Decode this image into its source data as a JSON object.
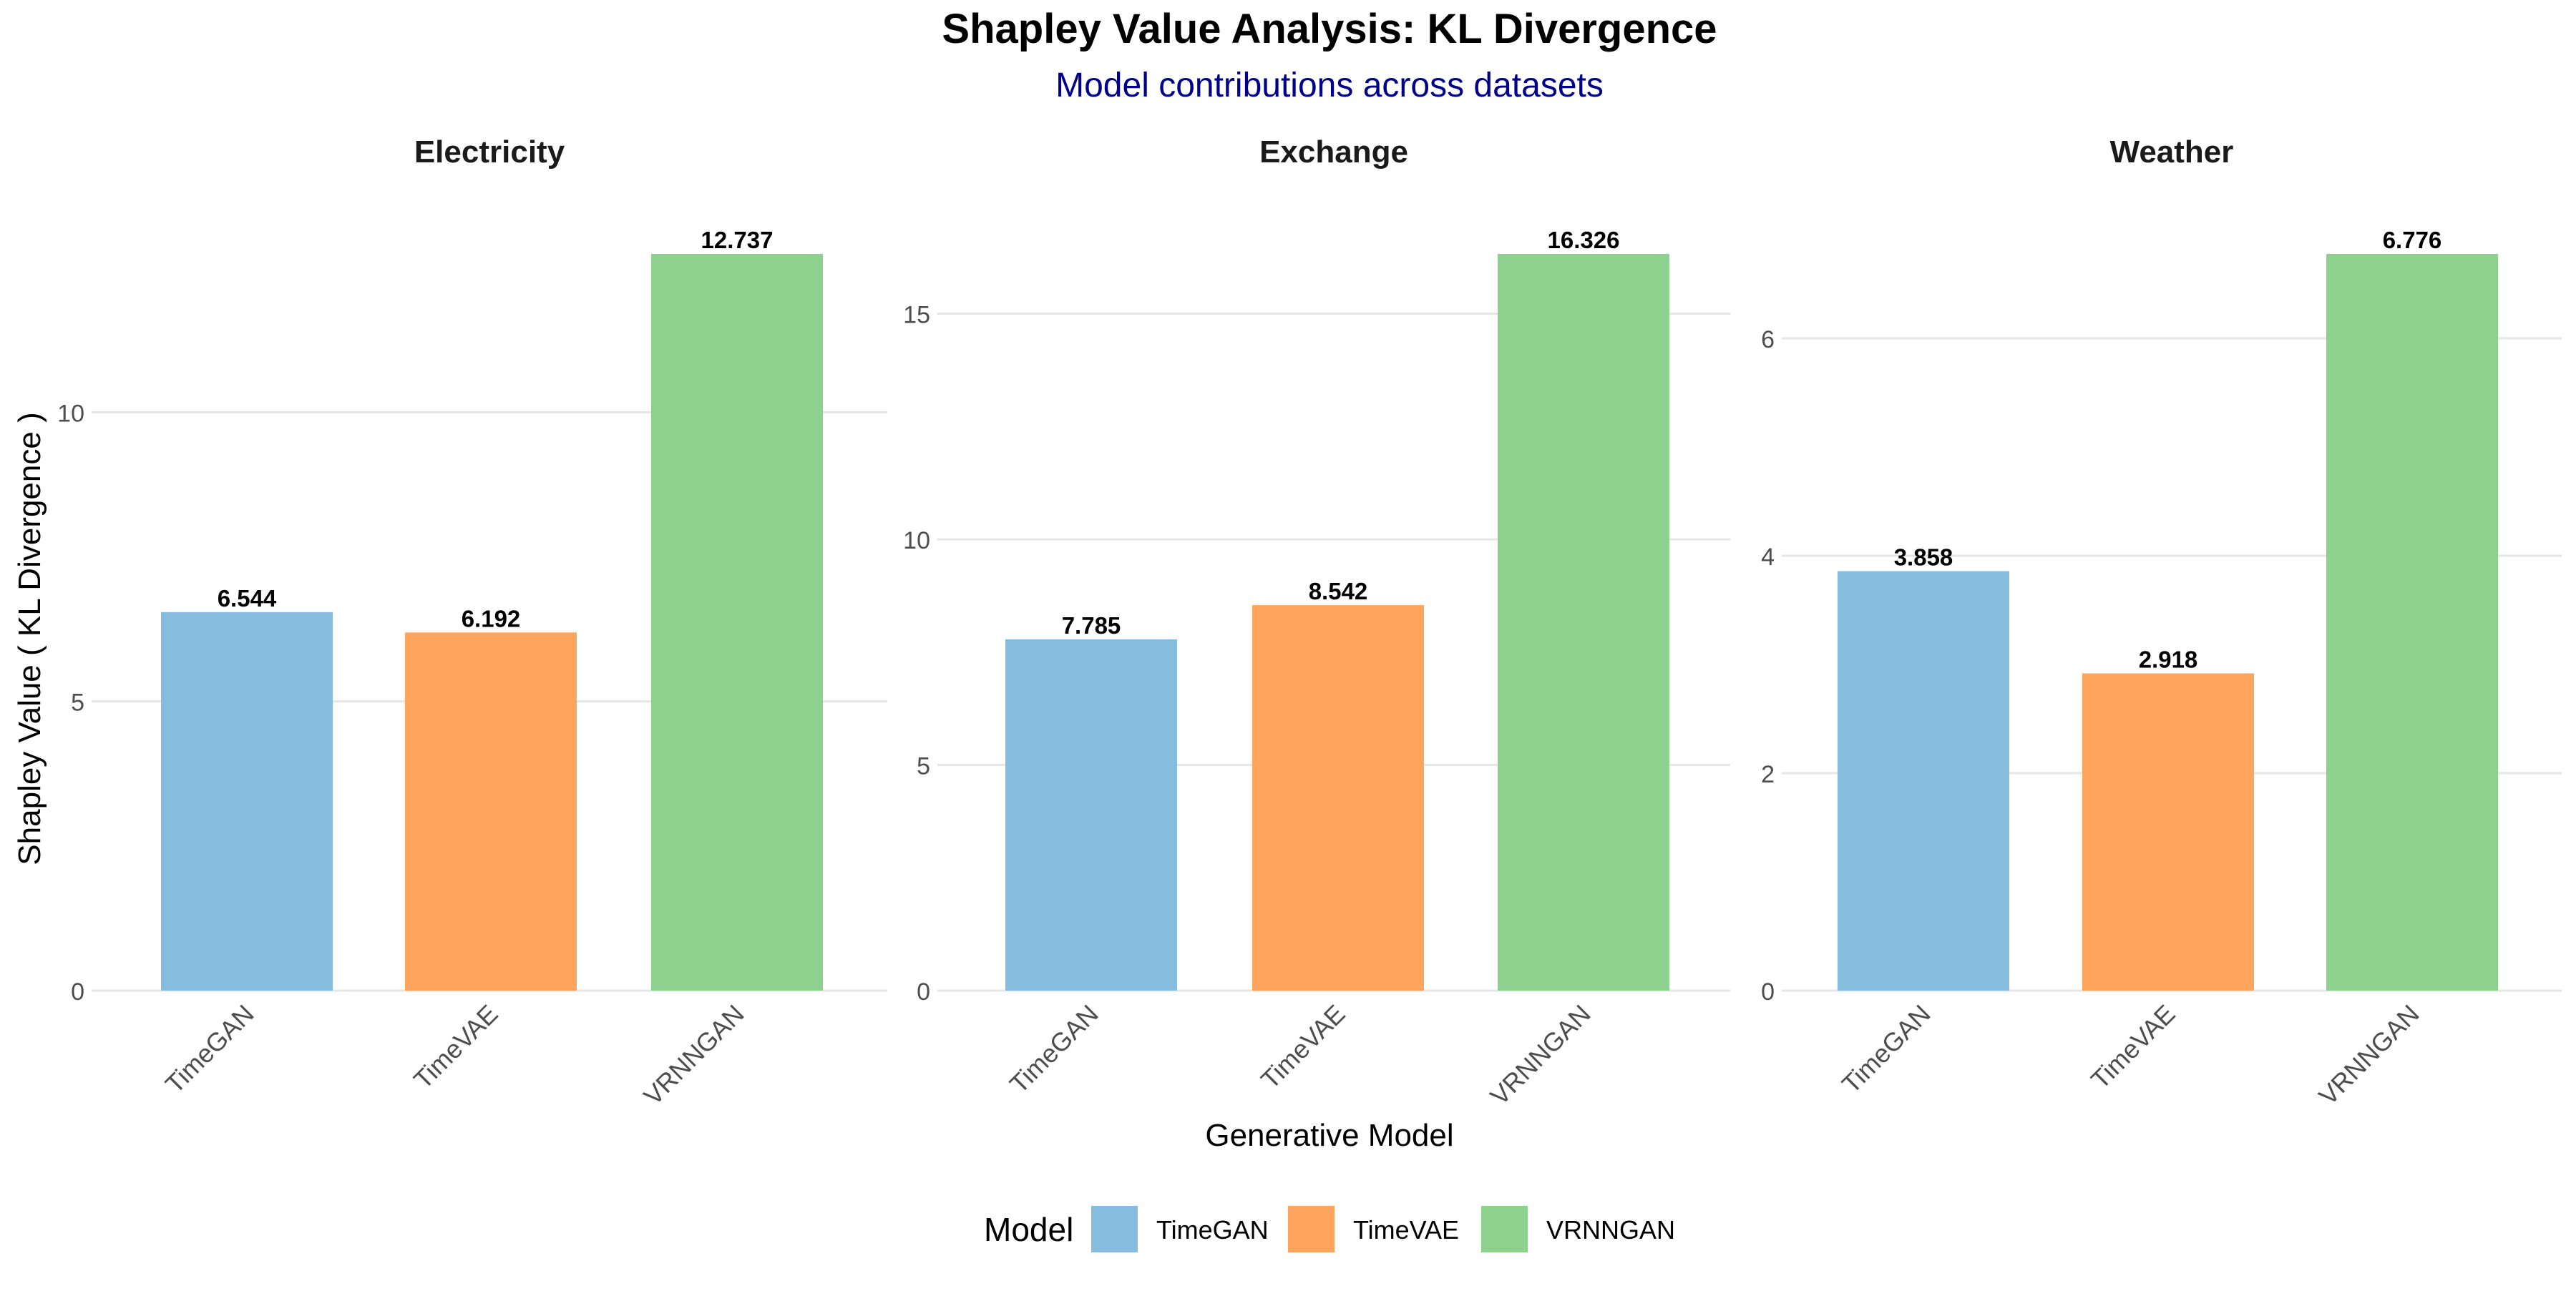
{
  "chart_data": {
    "type": "bar",
    "title": "Shapley Value Analysis: KL Divergence",
    "subtitle": "Model contributions across datasets",
    "xlabel": "Generative Model",
    "ylabel": "Shapley Value ( KL Divergence )",
    "grid": true,
    "legend": {
      "title": "Model",
      "position": "bottom",
      "entries": [
        "TimeGAN",
        "TimeVAE",
        "VRNNGAN"
      ]
    },
    "colors": {
      "TimeGAN": "#86bcde",
      "TimeVAE": "#fda55f",
      "VRNNGAN": "#8ed18e",
      "title": "#000000",
      "subtitle": "#00008b",
      "grid": "#e6e6e6",
      "tick_label": "#4d4d4d"
    },
    "categories": [
      "TimeGAN",
      "TimeVAE",
      "VRNNGAN"
    ],
    "panels": [
      {
        "name": "Electricity",
        "values": [
          6.544,
          6.192,
          12.737
        ],
        "value_labels": [
          "6.544",
          "6.192",
          "12.737"
        ],
        "ylim": [
          0,
          12.737
        ],
        "yticks": [
          0,
          5,
          10
        ],
        "ytick_labels": [
          "0",
          "5",
          "10"
        ]
      },
      {
        "name": "Exchange",
        "values": [
          7.785,
          8.542,
          16.326
        ],
        "value_labels": [
          "7.785",
          "8.542",
          "16.326"
        ],
        "ylim": [
          0,
          16.326
        ],
        "yticks": [
          0,
          5,
          10,
          15
        ],
        "ytick_labels": [
          "0",
          "5",
          "10",
          "15"
        ]
      },
      {
        "name": "Weather",
        "values": [
          3.858,
          2.918,
          6.776
        ],
        "value_labels": [
          "3.858",
          "2.918",
          "6.776"
        ],
        "ylim": [
          0,
          6.776
        ],
        "yticks": [
          0,
          2,
          4,
          6
        ],
        "ytick_labels": [
          "0",
          "2",
          "4",
          "6"
        ]
      }
    ]
  }
}
